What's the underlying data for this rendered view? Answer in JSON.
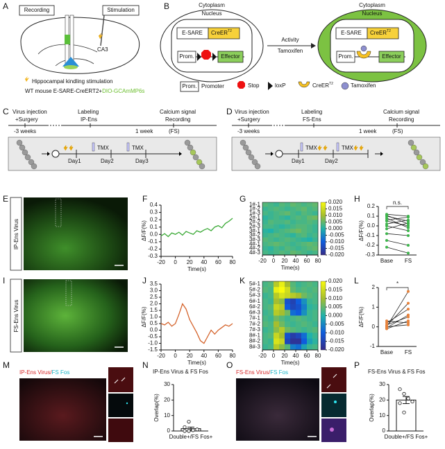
{
  "panel_labels": [
    "A",
    "B",
    "C",
    "D",
    "E",
    "F",
    "G",
    "H",
    "I",
    "J",
    "K",
    "L",
    "M",
    "N",
    "O",
    "P"
  ],
  "A": {
    "recording": "Recording",
    "stimulation": "Stimulation",
    "ca3": "CA3",
    "stim_note": "Hippocampal kindling stimulation",
    "mouse": "WT mouse E-SARE-CreERT2+",
    "virus": "DIO-GCAmMP6s"
  },
  "B": {
    "cytoplasm": "Cytoplasm",
    "nucleus": "Nucleus",
    "esare": "E-SARE",
    "creer": "CreER",
    "t2": "T2",
    "prom": "Prom.",
    "effector": "Effector",
    "activity": "Activity",
    "tamoxifen": "Tamoxifen",
    "legend": {
      "promoter": "Promoter",
      "stop": "Stop",
      "loxp": "loxP"
    }
  },
  "C": {
    "step1": "Virus injection",
    "step1b": "+Surgery",
    "step2": "Labeling",
    "step2b": "IP-Ens",
    "step3": "Calcium signal",
    "step3b": "Recording",
    "step3c": "(FS)",
    "t1": "-3 weeks",
    "t2": "1 week",
    "tmx": "TMX",
    "days": [
      "Day1",
      "Day2",
      "Day3"
    ]
  },
  "D": {
    "step2b": "FS-Ens",
    "days": [
      "Day1",
      "Day2"
    ]
  },
  "E": {
    "side_label": "IP-Ens Virus"
  },
  "I": {
    "side_label": "FS-Ens Virus"
  },
  "M": {
    "title_a": "IP-Ens Virus/",
    "title_b": "FS Fos"
  },
  "O": {
    "title_a": "FS-Ens Virus/",
    "title_b": "FS Fos"
  },
  "chart_data": [
    {
      "type": "line",
      "xlabel": "Time(s)",
      "ylabel": "ΔF/F(%)",
      "color": "#3aa935",
      "x": [
        -20,
        -15,
        -10,
        -5,
        0,
        5,
        10,
        15,
        20,
        25,
        30,
        35,
        40,
        45,
        50,
        55,
        60,
        65,
        70,
        75,
        80
      ],
      "values": [
        -0.02,
        0.01,
        -0.03,
        0.02,
        0.0,
        0.03,
        -0.01,
        0.04,
        0.02,
        0.0,
        0.05,
        0.03,
        0.06,
        0.08,
        0.05,
        0.1,
        0.12,
        0.09,
        0.15,
        0.18,
        0.22
      ],
      "xlim": [
        -20,
        80
      ],
      "xticks": [
        -20,
        0,
        20,
        40,
        60,
        80
      ],
      "ylim": [
        -0.3,
        0.4
      ],
      "yticks": [
        -0.3,
        -0.2,
        -0.1,
        {
          "value": 0,
          "label": "0.0"
        },
        0.1,
        0.2,
        0.3,
        0.4
      ]
    },
    {
      "type": "heatmap",
      "xlabel": "Time(s)",
      "rows": [
        "1#-1",
        "1#-2",
        "1#-3",
        "2#-1",
        "2#-2",
        "2#-3",
        "3#-1",
        "3#-2",
        "3#-3",
        "4#-1",
        "4#-2",
        "4#-3"
      ],
      "xbins": [
        -20,
        -10,
        0,
        10,
        20,
        30,
        40,
        50,
        60,
        70,
        80
      ],
      "xlim": [
        -20,
        80
      ],
      "xticks": [
        -20,
        0,
        20,
        40,
        60,
        80
      ],
      "values": [
        [
          0.004,
          0.003,
          0.002,
          0.004,
          0.003,
          0.005,
          0.004,
          0.003,
          0.004,
          0.005
        ],
        [
          0.002,
          0.003,
          0.004,
          0.003,
          0.002,
          0.003,
          0.004,
          0.005,
          0.003,
          0.004
        ],
        [
          0.003,
          0.002,
          0.003,
          0.004,
          0.005,
          0.003,
          0.002,
          0.004,
          0.003,
          0.002
        ],
        [
          0.001,
          0.002,
          0.003,
          0.002,
          0.001,
          0.003,
          0.004,
          0.003,
          0.005,
          0.006
        ],
        [
          0.002,
          0.004,
          0.003,
          0.003,
          0.004,
          0.002,
          0.003,
          0.003,
          0.004,
          0.003
        ],
        [
          0.003,
          0.003,
          0.002,
          0.001,
          0.002,
          0.003,
          0.004,
          0.004,
          0.003,
          0.002
        ],
        [
          0.001,
          0.0,
          0.002,
          0.003,
          0.004,
          0.005,
          0.006,
          0.004,
          0.003,
          0.002
        ],
        [
          0.002,
          0.003,
          0.004,
          0.003,
          0.002,
          0.001,
          0.003,
          0.004,
          0.002,
          0.003
        ],
        [
          0.004,
          0.003,
          0.002,
          0.003,
          0.004,
          0.003,
          0.002,
          0.001,
          0.0,
          0.002
        ],
        [
          0.003,
          0.004,
          0.005,
          0.004,
          0.003,
          0.002,
          0.003,
          0.004,
          0.005,
          0.004
        ],
        [
          0.002,
          0.001,
          0.003,
          0.002,
          0.004,
          0.003,
          0.002,
          0.003,
          0.004,
          0.005
        ],
        [
          0.003,
          0.002,
          0.003,
          0.004,
          0.003,
          0.005,
          0.004,
          0.003,
          0.002,
          0.003
        ]
      ],
      "clim": [
        -0.02,
        0.02
      ],
      "cticks": [
        {
          "value": 0.02,
          "label": "0.020"
        },
        {
          "value": 0.015,
          "label": "0.015"
        },
        {
          "value": 0.01,
          "label": "0.010"
        },
        {
          "value": 0.005,
          "label": "0.005"
        },
        {
          "value": 0,
          "label": "0.000"
        },
        {
          "value": -0.005,
          "label": "-0.005"
        },
        {
          "value": -0.01,
          "label": "-0.010"
        },
        {
          "value": -0.015,
          "label": "-0.015"
        },
        {
          "value": -0.02,
          "label": "-0.020"
        }
      ]
    },
    {
      "type": "paired",
      "ylabel": "ΔF/F(%)",
      "categories": [
        "Base",
        "FS"
      ],
      "annotation": "n.s.",
      "color": "#3cb44b",
      "ylim": [
        -0.3,
        0.2
      ],
      "yticks": [
        -0.3,
        -0.2,
        -0.1,
        {
          "value": 0,
          "label": "0.0"
        },
        0.1,
        0.2
      ],
      "series": [
        {
          "values": [
            0.12,
            0.1
          ]
        },
        {
          "values": [
            0.1,
            0.05
          ]
        },
        {
          "values": [
            0.08,
            -0.02
          ]
        },
        {
          "values": [
            0.06,
            0.09
          ]
        },
        {
          "values": [
            0.05,
            0.0
          ]
        },
        {
          "values": [
            0.02,
            0.06
          ]
        },
        {
          "values": [
            0.0,
            -0.05
          ]
        },
        {
          "values": [
            -0.03,
            0.03
          ]
        },
        {
          "values": [
            -0.08,
            -0.1
          ]
        },
        {
          "values": [
            -0.15,
            -0.2
          ]
        },
        {
          "values": [
            0.11,
            0.02
          ]
        },
        {
          "values": [
            -0.22,
            -0.28
          ]
        }
      ]
    },
    {
      "type": "line",
      "xlabel": "Time(s)",
      "ylabel": "ΔF/F(%)",
      "color": "#d4622a",
      "x": [
        -20,
        -15,
        -10,
        -5,
        0,
        5,
        10,
        15,
        20,
        25,
        30,
        35,
        40,
        45,
        50,
        55,
        60,
        65,
        70,
        75,
        80
      ],
      "values": [
        0.5,
        0.4,
        0.6,
        0.3,
        0.5,
        1.2,
        2.0,
        1.6,
        0.8,
        0.3,
        -0.2,
        -0.8,
        -1.0,
        -0.5,
        0.0,
        -0.3,
        0.0,
        0.2,
        0.4,
        0.3,
        0.5
      ],
      "xlim": [
        -20,
        80
      ],
      "xticks": [
        -20,
        0,
        20,
        40,
        60,
        80
      ],
      "ylim": [
        -1.5,
        3.5
      ],
      "yticks": [
        -1.5,
        {
          "value": -1,
          "label": "-1.0"
        },
        -0.5,
        {
          "value": 0,
          "label": "0.0"
        },
        0.5,
        {
          "value": 1,
          "label": "1.0"
        },
        1.5,
        {
          "value": 2,
          "label": "2.0"
        },
        2.5,
        {
          "value": 3,
          "label": "3.0"
        },
        3.5
      ]
    },
    {
      "type": "heatmap",
      "xlabel": "Time(s)",
      "rows": [
        "5#-1",
        "5#-2",
        "5#-3",
        "6#-1",
        "6#-2",
        "6#-3",
        "7#-1",
        "7#-2",
        "7#-3",
        "8#-1",
        "8#-2",
        "8#-3"
      ],
      "xbins": [
        -20,
        -10,
        0,
        10,
        20,
        30,
        40,
        50,
        60,
        70,
        80
      ],
      "xlim": [
        -20,
        80
      ],
      "xticks": [
        -20,
        0,
        20,
        40,
        60,
        80
      ],
      "values": [
        [
          0.003,
          0.004,
          0.012,
          0.018,
          0.01,
          0.004,
          0.002,
          0.003,
          0.004,
          0.003
        ],
        [
          0.004,
          0.003,
          0.018,
          0.02,
          0.015,
          0.005,
          0.003,
          0.004,
          0.003,
          0.004
        ],
        [
          0.002,
          0.003,
          0.012,
          0.016,
          0.014,
          0.012,
          0.01,
          0.006,
          0.004,
          0.003
        ],
        [
          0.003,
          0.002,
          0.01,
          0.008,
          -0.012,
          -0.015,
          -0.01,
          -0.004,
          0.002,
          0.003
        ],
        [
          0.003,
          0.004,
          0.014,
          0.012,
          -0.01,
          -0.014,
          -0.012,
          -0.006,
          0.001,
          0.002
        ],
        [
          0.002,
          0.003,
          0.012,
          0.01,
          0.006,
          -0.008,
          -0.01,
          -0.004,
          0.002,
          0.003
        ],
        [
          0.003,
          0.002,
          0.006,
          0.004,
          0.002,
          0.003,
          0.004,
          0.003,
          0.002,
          0.003
        ],
        [
          0.004,
          0.003,
          0.01,
          0.006,
          0.003,
          0.002,
          0.003,
          0.004,
          0.003,
          0.002
        ],
        [
          0.002,
          0.003,
          0.008,
          0.012,
          0.006,
          0.004,
          0.003,
          0.002,
          0.003,
          0.004
        ],
        [
          0.003,
          0.004,
          0.014,
          0.01,
          -0.012,
          -0.016,
          -0.014,
          -0.008,
          0.0,
          0.002
        ],
        [
          0.003,
          0.002,
          0.016,
          0.014,
          -0.014,
          -0.018,
          -0.018,
          -0.01,
          -0.002,
          0.001
        ],
        [
          0.002,
          0.003,
          0.012,
          0.008,
          0.004,
          -0.006,
          -0.008,
          -0.002,
          0.002,
          0.003
        ]
      ],
      "clim": [
        -0.02,
        0.02
      ],
      "cticks": [
        {
          "value": 0.02,
          "label": "0.020"
        },
        {
          "value": 0.015,
          "label": "0.015"
        },
        {
          "value": 0.01,
          "label": "0.010"
        },
        {
          "value": 0.005,
          "label": "0.005"
        },
        {
          "value": 0,
          "label": "0.000"
        },
        {
          "value": -0.005,
          "label": "-0.005"
        },
        {
          "value": -0.01,
          "label": "-0.010"
        },
        {
          "value": -0.015,
          "label": "-0.015"
        },
        {
          "value": -0.02,
          "label": "-0.020"
        }
      ]
    },
    {
      "type": "paired",
      "ylabel": "ΔF/F(%)",
      "categories": [
        "Base",
        "FS"
      ],
      "annotation": "*",
      "color": "#e8823a",
      "ylim": [
        -1,
        2
      ],
      "yticks": [
        -1,
        0,
        1,
        2
      ],
      "series": [
        {
          "values": [
            0.0,
            1.8
          ]
        },
        {
          "values": [
            0.05,
            1.2
          ]
        },
        {
          "values": [
            0.2,
            0.9
          ]
        },
        {
          "values": [
            -0.05,
            0.6
          ]
        },
        {
          "values": [
            0.1,
            0.5
          ]
        },
        {
          "values": [
            -0.1,
            0.3
          ]
        },
        {
          "values": [
            0.3,
            0.2
          ]
        },
        {
          "values": [
            0.0,
            0.1
          ]
        }
      ]
    },
    {
      "type": "bar",
      "title": "IP-Ens Virus & FS Fos",
      "ylabel": "Overlap(%)",
      "categories": [
        "Double+/FS Fos+"
      ],
      "values": [
        1.5
      ],
      "errors": [
        1.0
      ],
      "points": [
        [
          0,
          0,
          0.5,
          1,
          2.5,
          6
        ]
      ],
      "ylim": [
        0,
        30
      ],
      "yticks": [
        0,
        10,
        20,
        30
      ]
    },
    {
      "type": "bar",
      "title": "FS-Ens Virus & FS Fos",
      "ylabel": "Overlap(%)",
      "categories": [
        "Double+/FS Fos+"
      ],
      "values": [
        20
      ],
      "errors": [
        2.3
      ],
      "points": [
        [
          27,
          24,
          21,
          19,
          18,
          12
        ]
      ],
      "ylim": [
        0,
        30
      ],
      "yticks": [
        0,
        10,
        20,
        30
      ]
    }
  ]
}
